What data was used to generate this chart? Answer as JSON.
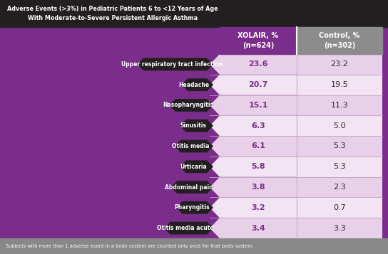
{
  "header_xolair": "XOLAIR, %\n(n=624)",
  "header_control": "Control, %\n(n=302)",
  "rows": [
    {
      "label": "Upper respiratory tract infection",
      "xolair": "23.6",
      "control": "23.2"
    },
    {
      "label": "Headache",
      "xolair": "20.7",
      "control": "19.5"
    },
    {
      "label": "Nasopharyngitis",
      "xolair": "15.1",
      "control": "11.3"
    },
    {
      "label": "Sinusitis",
      "xolair": "6.3",
      "control": "5.0"
    },
    {
      "label": "Otitis media",
      "xolair": "6.1",
      "control": "5.3"
    },
    {
      "label": "Urticaria",
      "xolair": "5.8",
      "control": "5.3"
    },
    {
      "label": "Abdominal pain",
      "xolair": "3.8",
      "control": "2.3"
    },
    {
      "label": "Pharyngitis",
      "xolair": "3.2",
      "control": "0.7"
    },
    {
      "label": "Otitis media acute",
      "xolair": "3.4",
      "control": "3.3"
    }
  ],
  "purple": "#7B2D8B",
  "dark_banner": "#231F20",
  "gray_header": "#8C8C8C",
  "row_light": "#E8D0E8",
  "row_lighter": "#F2E4F2",
  "xolair_val_color": "#7B2D8B",
  "control_val_color": "#2a2a2a",
  "label_bg_color": "#231F20",
  "label_text_color": "#FFFFFF",
  "footer_bg": "#888888",
  "footer_text": "Subjects with more than 1 adverse event in a body system are counted only once for that body system.",
  "title_line1": "Adverse Events (>3%) in Pediatric Patients 6 to <12 Years of Age",
  "title_line2": "With Moderate-to-Severe Persistent Allergic Asthma"
}
